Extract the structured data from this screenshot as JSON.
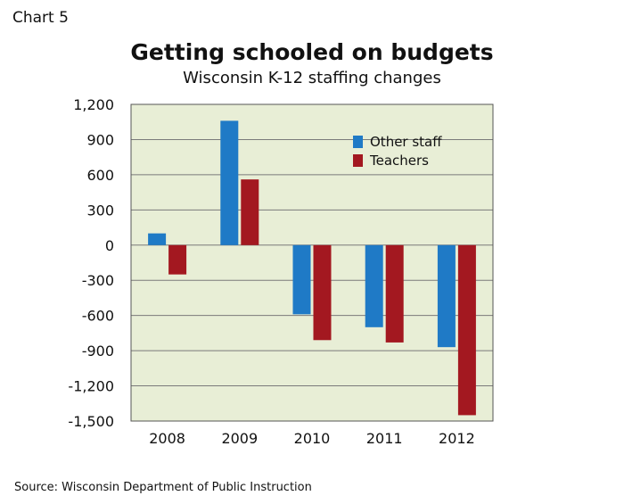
{
  "header": {
    "chart_number": "Chart 5",
    "title": "Getting schooled on budgets",
    "subtitle": "Wisconsin K-12 staffing changes"
  },
  "footer": {
    "source": "Source: Wisconsin Department of Public Instruction"
  },
  "colors": {
    "plot_background": "#e8eed6",
    "gridline": "#7a7a7a",
    "other_staff": "#1f7ac6",
    "teachers": "#a31820"
  },
  "chart_data": {
    "type": "bar",
    "categories": [
      "2008",
      "2009",
      "2010",
      "2011",
      "2012"
    ],
    "series": [
      {
        "name": "Other staff",
        "color": "#1f7ac6",
        "values": [
          100,
          1060,
          -590,
          -700,
          -870
        ]
      },
      {
        "name": "Teachers",
        "color": "#a31820",
        "values": [
          -250,
          560,
          -810,
          -830,
          -1450
        ]
      }
    ],
    "ylim": [
      -1500,
      1200
    ],
    "yticks": [
      1200,
      900,
      600,
      300,
      0,
      -300,
      -600,
      -900,
      -1200,
      -1500
    ],
    "ytick_labels": [
      "1,200",
      "900",
      "600",
      "300",
      "0",
      "-300",
      "-600",
      "-900",
      "-1,200",
      "-1,500"
    ],
    "grid": true,
    "legend": "top-right"
  }
}
